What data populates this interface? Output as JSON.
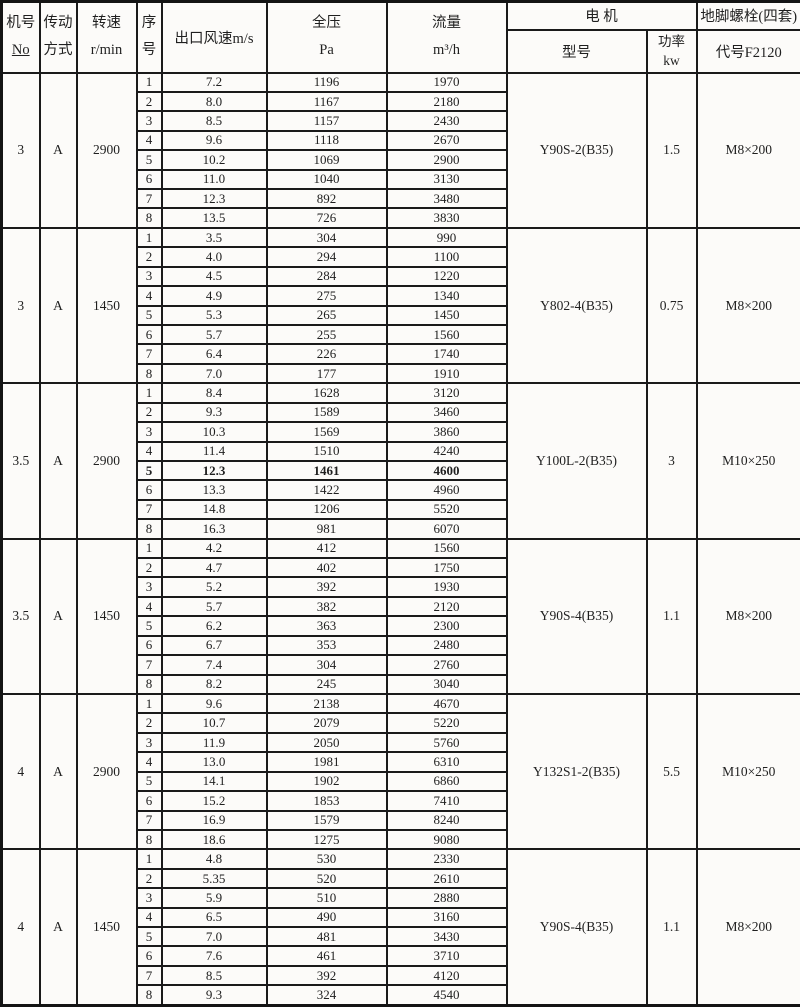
{
  "header": {
    "machine_no": [
      "机号",
      "No"
    ],
    "drive": [
      "传动",
      "方式"
    ],
    "speed": [
      "转速",
      "r/min"
    ],
    "seq": [
      "序",
      "号"
    ],
    "outlet_speed": "出口风速m/s",
    "pressure": [
      "全压",
      "Pa"
    ],
    "flow": [
      "流量",
      "m³/h"
    ],
    "motor": "电  机",
    "motor_model": "型号",
    "motor_power": [
      "功率",
      "kw"
    ],
    "bolt_group": "地脚螺栓(四套)",
    "bolt_code": "代号F2120"
  },
  "table": {
    "groups": [
      {
        "machine_no": "3",
        "drive": "A",
        "speed": "2900",
        "motor_model": "Y90S-2(B35)",
        "motor_power": "1.5",
        "bolt": "M8×200",
        "rows": [
          [
            "1",
            "7.2",
            "1196",
            "1970"
          ],
          [
            "2",
            "8.0",
            "1167",
            "2180"
          ],
          [
            "3",
            "8.5",
            "1157",
            "2430"
          ],
          [
            "4",
            "9.6",
            "1118",
            "2670"
          ],
          [
            "5",
            "10.2",
            "1069",
            "2900"
          ],
          [
            "6",
            "11.0",
            "1040",
            "3130"
          ],
          [
            "7",
            "12.3",
            "892",
            "3480"
          ],
          [
            "8",
            "13.5",
            "726",
            "3830"
          ]
        ]
      },
      {
        "machine_no": "3",
        "drive": "A",
        "speed": "1450",
        "motor_model": "Y802-4(B35)",
        "motor_power": "0.75",
        "bolt": "M8×200",
        "rows": [
          [
            "1",
            "3.5",
            "304",
            "990"
          ],
          [
            "2",
            "4.0",
            "294",
            "1100"
          ],
          [
            "3",
            "4.5",
            "284",
            "1220"
          ],
          [
            "4",
            "4.9",
            "275",
            "1340"
          ],
          [
            "5",
            "5.3",
            "265",
            "1450"
          ],
          [
            "6",
            "5.7",
            "255",
            "1560"
          ],
          [
            "7",
            "6.4",
            "226",
            "1740"
          ],
          [
            "8",
            "7.0",
            "177",
            "1910"
          ]
        ]
      },
      {
        "machine_no": "3.5",
        "drive": "A",
        "speed": "2900",
        "motor_model": "Y100L-2(B35)",
        "motor_power": "3",
        "bolt": "M10×250",
        "bold_seq": "5",
        "rows": [
          [
            "1",
            "8.4",
            "1628",
            "3120"
          ],
          [
            "2",
            "9.3",
            "1589",
            "3460"
          ],
          [
            "3",
            "10.3",
            "1569",
            "3860"
          ],
          [
            "4",
            "11.4",
            "1510",
            "4240"
          ],
          [
            "5",
            "12.3",
            "1461",
            "4600"
          ],
          [
            "6",
            "13.3",
            "1422",
            "4960"
          ],
          [
            "7",
            "14.8",
            "1206",
            "5520"
          ],
          [
            "8",
            "16.3",
            "981",
            "6070"
          ]
        ]
      },
      {
        "machine_no": "3.5",
        "drive": "A",
        "speed": "1450",
        "motor_model": "Y90S-4(B35)",
        "motor_power": "1.1",
        "bolt": "M8×200",
        "rows": [
          [
            "1",
            "4.2",
            "412",
            "1560"
          ],
          [
            "2",
            "4.7",
            "402",
            "1750"
          ],
          [
            "3",
            "5.2",
            "392",
            "1930"
          ],
          [
            "4",
            "5.7",
            "382",
            "2120"
          ],
          [
            "5",
            "6.2",
            "363",
            "2300"
          ],
          [
            "6",
            "6.7",
            "353",
            "2480"
          ],
          [
            "7",
            "7.4",
            "304",
            "2760"
          ],
          [
            "8",
            "8.2",
            "245",
            "3040"
          ]
        ]
      },
      {
        "machine_no": "4",
        "drive": "A",
        "speed": "2900",
        "motor_model": "Y132S1-2(B35)",
        "motor_power": "5.5",
        "bolt": "M10×250",
        "rows": [
          [
            "1",
            "9.6",
            "2138",
            "4670"
          ],
          [
            "2",
            "10.7",
            "2079",
            "5220"
          ],
          [
            "3",
            "11.9",
            "2050",
            "5760"
          ],
          [
            "4",
            "13.0",
            "1981",
            "6310"
          ],
          [
            "5",
            "14.1",
            "1902",
            "6860"
          ],
          [
            "6",
            "15.2",
            "1853",
            "7410"
          ],
          [
            "7",
            "16.9",
            "1579",
            "8240"
          ],
          [
            "8",
            "18.6",
            "1275",
            "9080"
          ]
        ]
      },
      {
        "machine_no": "4",
        "drive": "A",
        "speed": "1450",
        "motor_model": "Y90S-4(B35)",
        "motor_power": "1.1",
        "bolt": "M8×200",
        "rows": [
          [
            "1",
            "4.8",
            "530",
            "2330"
          ],
          [
            "2",
            "5.35",
            "520",
            "2610"
          ],
          [
            "3",
            "5.9",
            "510",
            "2880"
          ],
          [
            "4",
            "6.5",
            "490",
            "3160"
          ],
          [
            "5",
            "7.0",
            "481",
            "3430"
          ],
          [
            "6",
            "7.6",
            "461",
            "3710"
          ],
          [
            "7",
            "8.5",
            "392",
            "4120"
          ],
          [
            "8",
            "9.3",
            "324",
            "4540"
          ]
        ]
      }
    ]
  }
}
